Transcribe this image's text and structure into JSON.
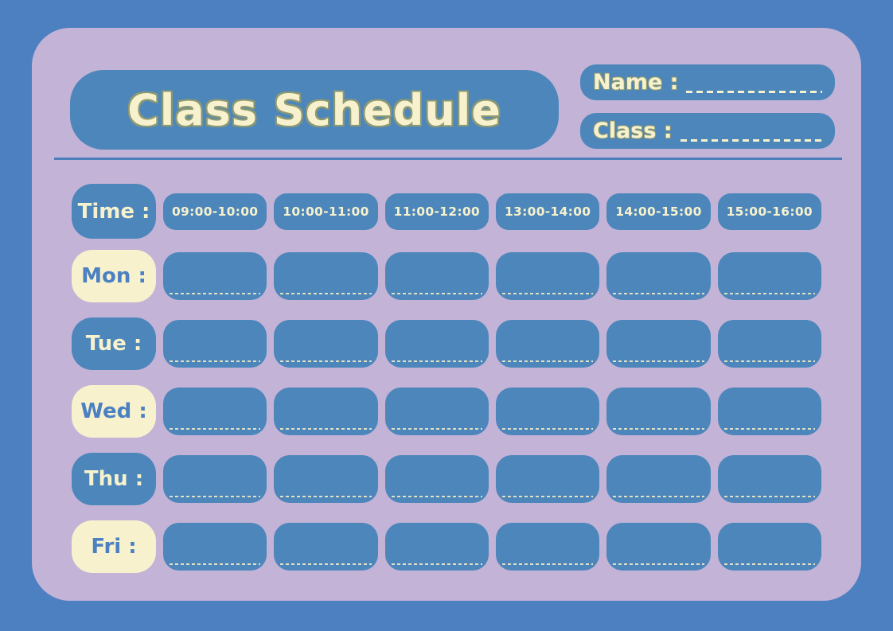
{
  "palette": {
    "outer": "#4d80c0",
    "card": "#c3b3d7",
    "box_blue": "#4c86bb",
    "cream": "#f7f2cd",
    "text_blue": "#4b80c2",
    "stroke": "#8d9973",
    "dash_light": "#dfe0c6",
    "divider": "#4b7fbb"
  },
  "header": {
    "title": "Class Schedule",
    "name_label": "Name :",
    "class_label": "Class :"
  },
  "schedule": {
    "time_label": "Time :",
    "time_slots": [
      "09:00-10:00",
      "10:00-11:00",
      "11:00-12:00",
      "13:00-14:00",
      "14:00-15:00",
      "15:00-16:00"
    ],
    "days": [
      {
        "label": "Mon :"
      },
      {
        "label": "Tue :"
      },
      {
        "label": "Wed :"
      },
      {
        "label": "Thu :"
      },
      {
        "label": "Fri :"
      }
    ]
  }
}
